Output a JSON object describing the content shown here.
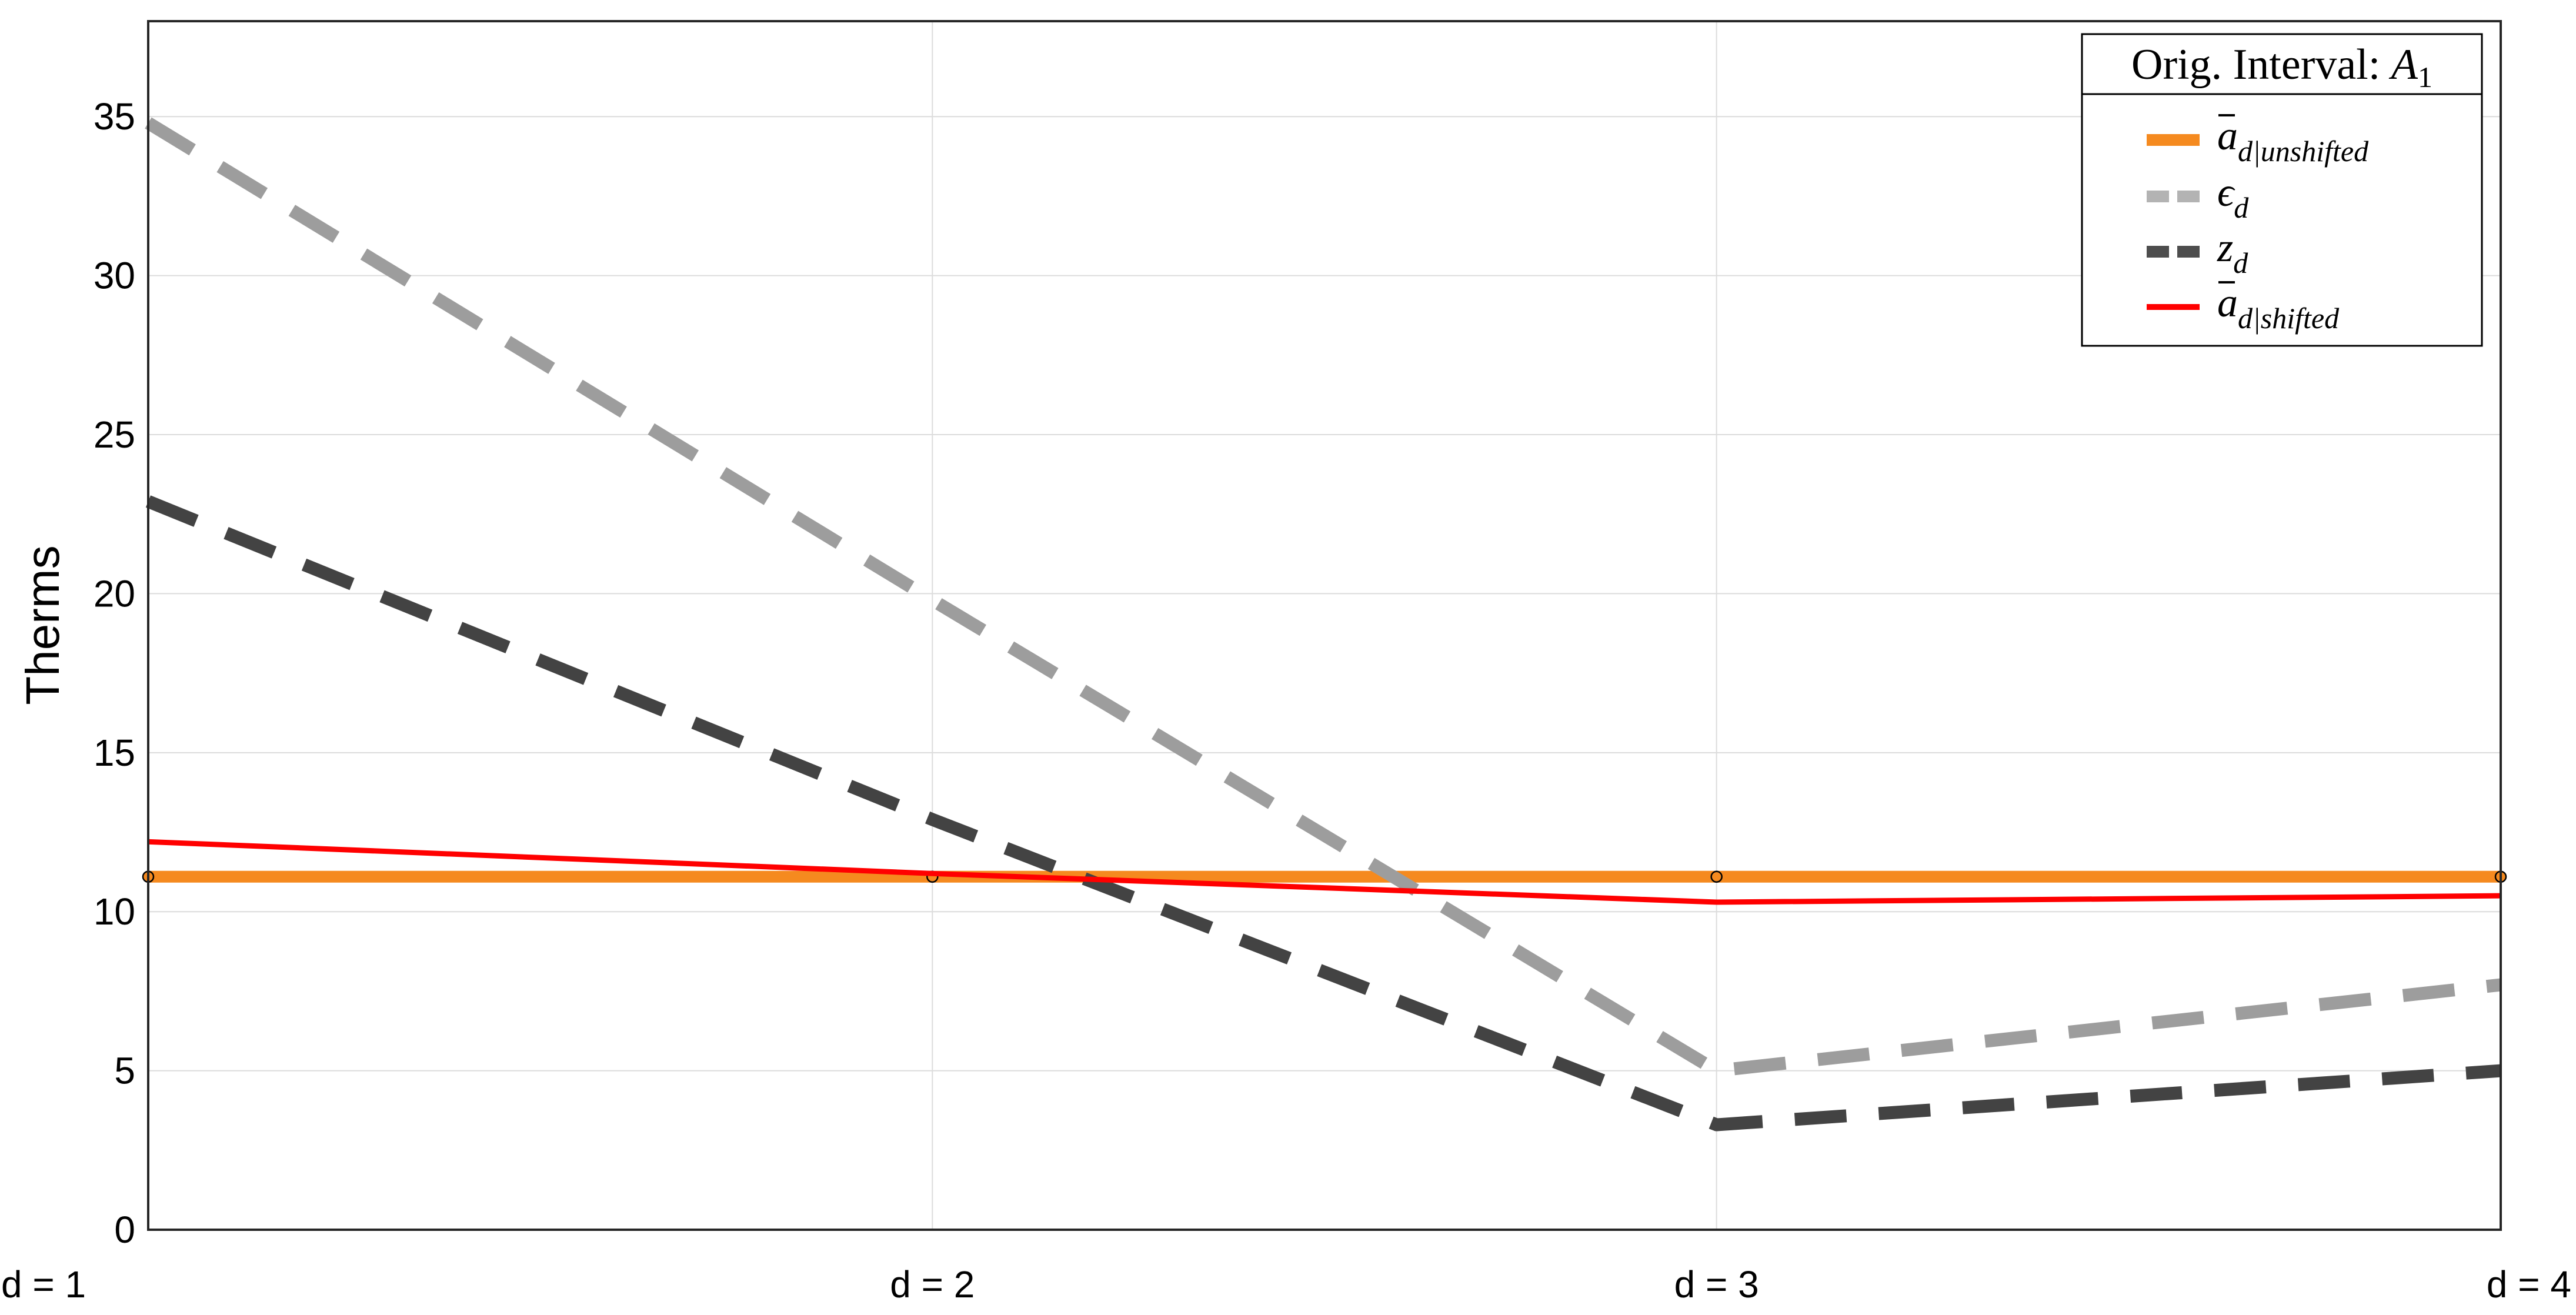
{
  "chart_data": {
    "type": "line",
    "title": "",
    "xlabel": "",
    "ylabel": "Therms",
    "categories": [
      "d  = 1",
      "d  = 2",
      "d  = 3",
      "d  = 4"
    ],
    "x": [
      1,
      2,
      3,
      4
    ],
    "xlim": [
      1,
      4
    ],
    "ylim": [
      0,
      38
    ],
    "yticks": [
      0,
      5,
      10,
      15,
      20,
      25,
      30,
      35
    ],
    "grid": true,
    "legend": {
      "title": "Orig. Interval: A1",
      "title_text": "Orig. Interval: ",
      "title_math": "A",
      "title_math_sub": "1",
      "placement": "top-right"
    },
    "series": [
      {
        "name": "ā d|unshifted",
        "legend_main": "a",
        "legend_sub": "d|unshifted",
        "legend_bar": true,
        "values": [
          11.1,
          11.1,
          11.1,
          11.1
        ],
        "color": "#f58a1f",
        "style": "solid",
        "markers": true
      },
      {
        "name": "ϵ d",
        "legend_main": "ϵ",
        "legend_sub": "d",
        "legend_bar": false,
        "values": [
          34.8,
          19.8,
          5.0,
          7.7
        ],
        "color": "#b3b3b3",
        "style": "dashed",
        "markers": false
      },
      {
        "name": "z d",
        "legend_main": "z",
        "legend_sub": "d",
        "legend_bar": false,
        "values": [
          22.9,
          12.9,
          3.3,
          5.0
        ],
        "color": "#4d4d4d",
        "style": "dashed",
        "markers": false
      },
      {
        "name": "ā d|shifted",
        "legend_main": "a",
        "legend_sub": "d|shifted",
        "legend_bar": true,
        "values": [
          12.2,
          11.2,
          10.3,
          10.5
        ],
        "color": "#ff0000",
        "style": "solid",
        "markers": false
      }
    ]
  }
}
